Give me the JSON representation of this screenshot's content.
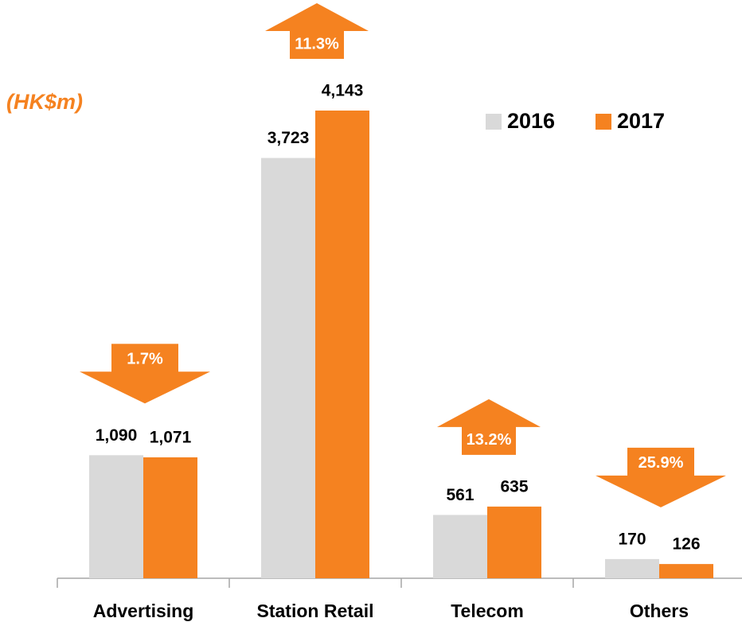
{
  "chart_data": {
    "type": "bar",
    "unit_label": "(HK$m)",
    "categories": [
      "Advertising",
      "Station Retail",
      "Telecom",
      "Others"
    ],
    "series": [
      {
        "name": "2016",
        "color": "#d9d9d9",
        "values": [
          1090,
          3723,
          561,
          170
        ],
        "value_labels": [
          "1,090",
          "3,723",
          "561",
          "170"
        ]
      },
      {
        "name": "2017",
        "color": "#f58220",
        "values": [
          1071,
          4143,
          635,
          126
        ],
        "value_labels": [
          "1,071",
          "4,143",
          "635",
          "126"
        ]
      }
    ],
    "annotations": [
      {
        "text": "1.7%",
        "direction": "down"
      },
      {
        "text": "11.3%",
        "direction": "up"
      },
      {
        "text": "13.2%",
        "direction": "up"
      },
      {
        "text": "25.9%",
        "direction": "down"
      }
    ],
    "annotation_color": "#f58220",
    "legend": "top-right"
  }
}
